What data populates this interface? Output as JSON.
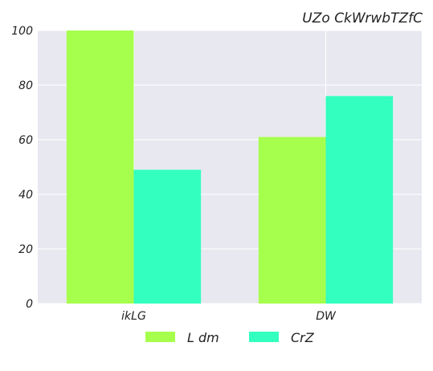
{
  "chart_data": {
    "type": "bar",
    "title": "UZo CkWrwbTZfC",
    "xlabel": "",
    "ylabel": "",
    "categories": [
      "ikLG",
      "DW"
    ],
    "series": [
      {
        "name": "L dm",
        "values": [
          100,
          61
        ]
      },
      {
        "name": "CrZ",
        "values": [
          49,
          76
        ]
      }
    ],
    "ylim": [
      0,
      100
    ],
    "yticks": [
      0,
      20,
      40,
      60,
      80,
      100
    ],
    "grid": true,
    "legend_position": "bottom-center",
    "colors": {
      "series": [
        "#a6ff4d",
        "#33ffbf"
      ],
      "background": "#e8e8f0",
      "grid": "#ffffff"
    }
  }
}
